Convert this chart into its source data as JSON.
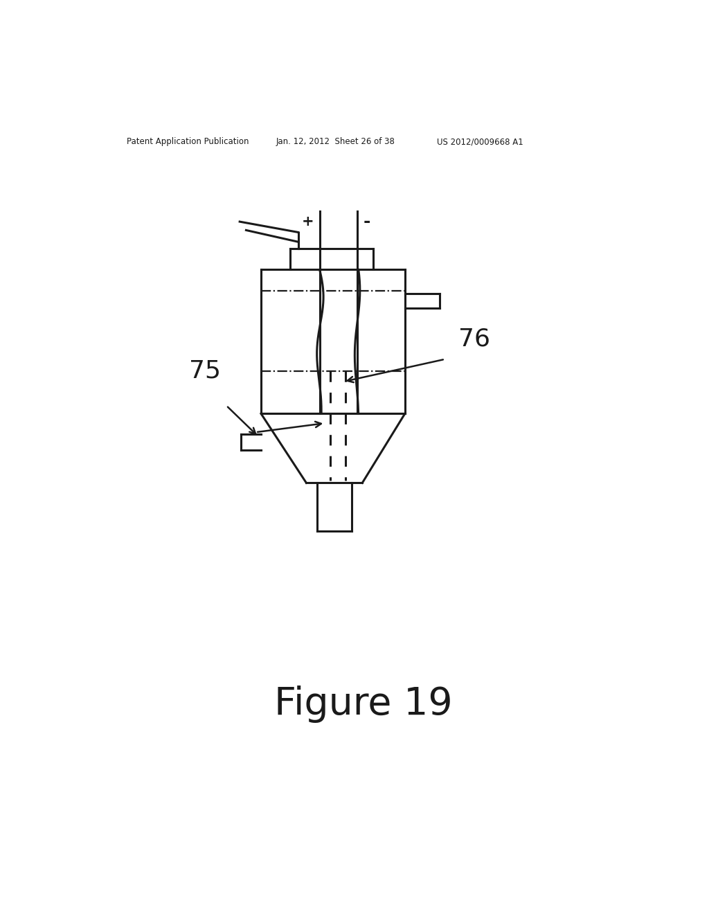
{
  "header_left": "Patent Application Publication",
  "header_mid": "Jan. 12, 2012  Sheet 26 of 38",
  "header_right": "US 2012/0009668 A1",
  "figure_label": "Figure 19",
  "label_75": "75",
  "label_76": "76",
  "bg_color": "#ffffff",
  "line_color": "#1a1a1a"
}
